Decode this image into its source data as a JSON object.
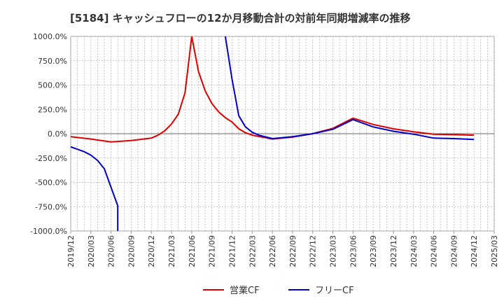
{
  "chart_data": {
    "type": "line",
    "title": "[5184]  キャッシュフローの12か月移動合計の対前年同期増減率の推移",
    "xlabel": "",
    "ylabel": "",
    "ylim": [
      -1000,
      1000
    ],
    "y_ticks": [
      "1000.0%",
      "750.0%",
      "500.0%",
      "250.0%",
      "0.0%",
      "-250.0%",
      "-500.0%",
      "-750.0%",
      "-1000.0%"
    ],
    "y_tick_values": [
      1000,
      750,
      500,
      250,
      0,
      -250,
      -500,
      -750,
      -1000
    ],
    "x_ticks": [
      "2019/12",
      "2020/03",
      "2020/06",
      "2020/09",
      "2020/12",
      "2021/03",
      "2021/06",
      "2021/09",
      "2021/12",
      "2022/03",
      "2022/06",
      "2022/09",
      "2022/12",
      "2023/03",
      "2023/06",
      "2023/09",
      "2023/12",
      "2024/03",
      "2024/06",
      "2024/09",
      "2024/12",
      "2025/03"
    ],
    "x_range": [
      "2019/12",
      "2025/03"
    ],
    "grid": true,
    "legend_position": "bottom-center",
    "series": [
      {
        "name": "営業CF",
        "color": "#e00000",
        "points": [
          [
            "2019/12",
            -30
          ],
          [
            "2020/03",
            -55
          ],
          [
            "2020/06",
            -85
          ],
          [
            "2020/09",
            -70
          ],
          [
            "2020/12",
            -45
          ],
          [
            "2021/01",
            -15
          ],
          [
            "2021/02",
            30
          ],
          [
            "2021/03",
            100
          ],
          [
            "2021/04",
            200
          ],
          [
            "2021/05",
            420
          ],
          [
            "2021/06",
            1000
          ],
          [
            "2021/07",
            640
          ],
          [
            "2021/08",
            440
          ],
          [
            "2021/09",
            310
          ],
          [
            "2021/10",
            225
          ],
          [
            "2021/11",
            165
          ],
          [
            "2021/12",
            120
          ],
          [
            "2022/01",
            50
          ],
          [
            "2022/02",
            10
          ],
          [
            "2022/03",
            -15
          ],
          [
            "2022/06",
            -55
          ],
          [
            "2022/09",
            -35
          ],
          [
            "2022/12",
            0
          ],
          [
            "2023/03",
            55
          ],
          [
            "2023/06",
            160
          ],
          [
            "2023/09",
            95
          ],
          [
            "2023/12",
            50
          ],
          [
            "2024/03",
            20
          ],
          [
            "2024/06",
            -5
          ],
          [
            "2024/09",
            -10
          ],
          [
            "2024/12",
            -15
          ]
        ]
      },
      {
        "name": "フリーCF",
        "color": "#0000cc",
        "points": [
          [
            "2019/12",
            -135
          ],
          [
            "2020/01",
            -160
          ],
          [
            "2020/02",
            -185
          ],
          [
            "2020/03",
            -220
          ],
          [
            "2020/04",
            -275
          ],
          [
            "2020/05",
            -360
          ],
          [
            "2020/06",
            -550
          ],
          [
            "2020/07",
            -740
          ],
          [
            "2020/07",
            -1000
          ],
          null,
          [
            "2021/11",
            1000
          ],
          [
            "2021/12",
            560
          ],
          [
            "2022/01",
            185
          ],
          [
            "2022/02",
            70
          ],
          [
            "2022/03",
            15
          ],
          [
            "2022/04",
            -15
          ],
          [
            "2022/06",
            -50
          ],
          [
            "2022/09",
            -30
          ],
          [
            "2022/12",
            0
          ],
          [
            "2023/03",
            45
          ],
          [
            "2023/06",
            145
          ],
          [
            "2023/09",
            70
          ],
          [
            "2023/12",
            25
          ],
          [
            "2024/03",
            -5
          ],
          [
            "2024/06",
            -45
          ],
          [
            "2024/09",
            -50
          ],
          [
            "2024/12",
            -60
          ]
        ]
      }
    ]
  }
}
